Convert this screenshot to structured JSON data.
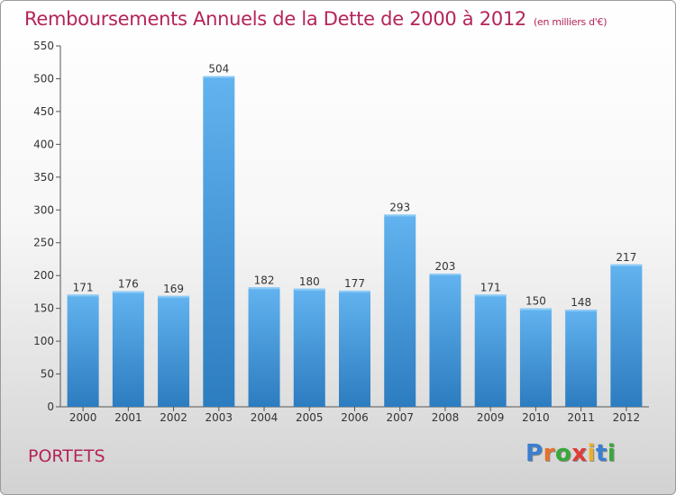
{
  "chart_data": {
    "type": "bar",
    "title": "Remboursements Annuels de la Dette de 2000 à 2012",
    "subtitle": "(en milliers d'€)",
    "categories": [
      "2000",
      "2001",
      "2002",
      "2003",
      "2004",
      "2005",
      "2006",
      "2007",
      "2008",
      "2009",
      "2010",
      "2011",
      "2012"
    ],
    "values": [
      171,
      176,
      169,
      504,
      182,
      180,
      177,
      293,
      203,
      171,
      150,
      148,
      217
    ],
    "ylim": [
      0,
      550
    ],
    "yticks": [
      0,
      50,
      100,
      150,
      200,
      250,
      300,
      350,
      400,
      450,
      500,
      550
    ],
    "grid": false,
    "bar_color": "#4a9fe0"
  },
  "commune": "PORTETS",
  "logo": {
    "letters": [
      "P",
      "r",
      "o",
      "x",
      "i",
      "t",
      "i"
    ],
    "colors": [
      "#3a7fd0",
      "#e8702a",
      "#3aa83a",
      "#e03a3a",
      "#e8b02a",
      "#3a7fd0",
      "#3aa83a"
    ]
  }
}
